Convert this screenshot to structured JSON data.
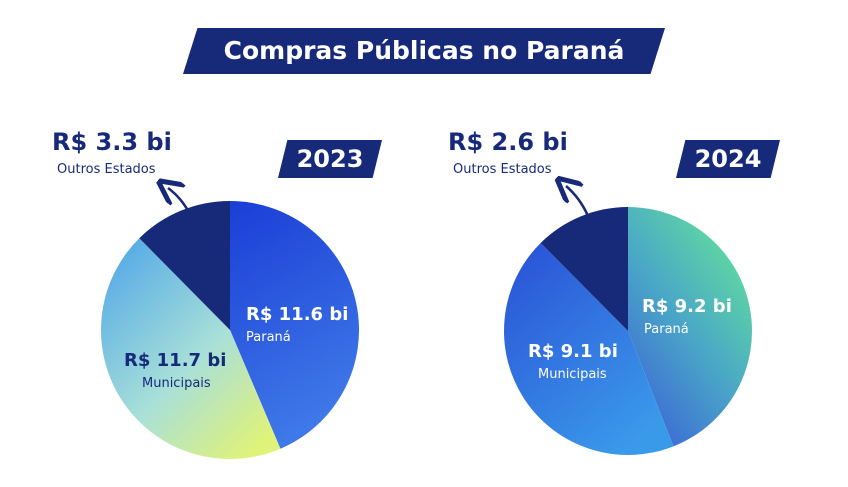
{
  "title": "Compras Públicas no Paraná",
  "colors": {
    "navy": "#172a7a",
    "white": "#ffffff"
  },
  "left": {
    "year": "2023",
    "outros": {
      "value_label": "R$ 3.3 bi",
      "name": "Outros Estados"
    },
    "parana": {
      "value_label": "R$ 11.6 bi",
      "name": "Paraná"
    },
    "municipais": {
      "value_label": "R$ 11.7 bi",
      "name": "Municipais"
    }
  },
  "right": {
    "year": "2024",
    "outros": {
      "value_label": "R$ 2.6 bi",
      "name": "Outros Estados"
    },
    "parana": {
      "value_label": "R$ 9.2 bi",
      "name": "Paraná"
    },
    "municipais": {
      "value_label": "R$ 9.1 bi",
      "name": "Municipais"
    }
  },
  "chart_data": [
    {
      "type": "pie",
      "title": "2023",
      "unit": "R$ bi",
      "categories": [
        "Paraná",
        "Municipais",
        "Outros Estados"
      ],
      "values": [
        11.6,
        11.7,
        3.3
      ]
    },
    {
      "type": "pie",
      "title": "2024",
      "unit": "R$ bi",
      "categories": [
        "Paraná",
        "Municipais",
        "Outros Estados"
      ],
      "values": [
        9.2,
        9.1,
        2.6
      ]
    }
  ]
}
